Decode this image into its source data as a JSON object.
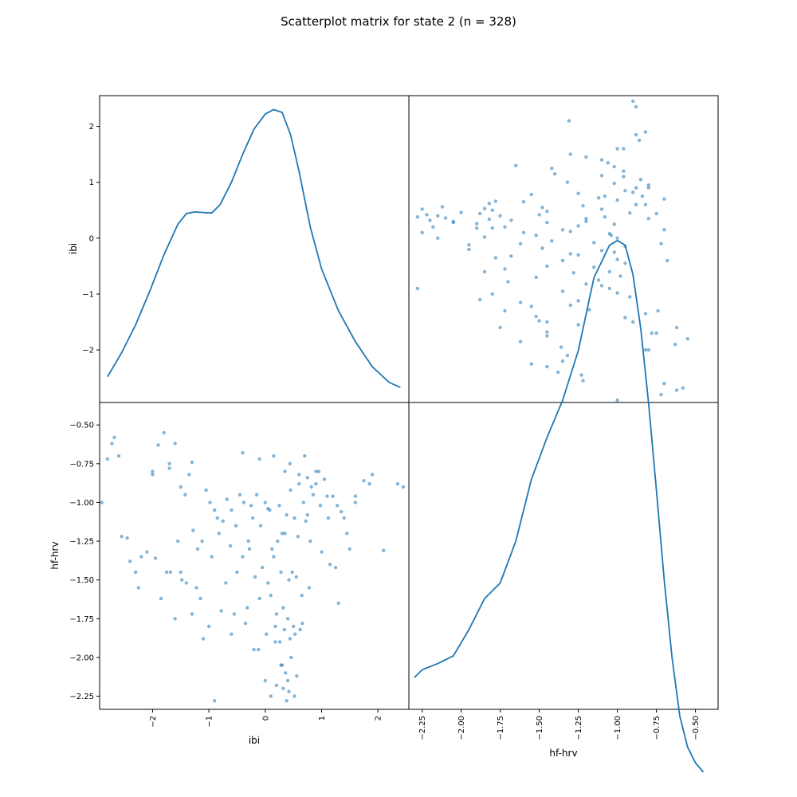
{
  "chart_data": {
    "type": "scatter_matrix",
    "title": "Scatterplot matrix for state 2 (n = 328)",
    "variables": [
      "ibi",
      "hf-hrv"
    ],
    "ranges": {
      "ibi": [
        -2.94,
        2.55
      ],
      "hf-hrv": [
        -2.335,
        -0.355
      ]
    },
    "ticks": {
      "ibi": {
        "values": [
          -2,
          -1,
          0,
          1,
          2
        ],
        "labels": [
          "−2",
          "−1",
          "0",
          "1",
          "2"
        ]
      },
      "hf-hrv": {
        "values": [
          -2.25,
          -2.0,
          -1.75,
          -1.5,
          -1.25,
          -1.0,
          -0.75,
          -0.5
        ],
        "labels": [
          "−2.25",
          "−2.00",
          "−1.75",
          "−1.50",
          "−1.25",
          "−1.00",
          "−0.75",
          "−0.50"
        ]
      }
    },
    "diagonal": "kde",
    "kde": {
      "ibi": {
        "x": [
          -2.8,
          -2.55,
          -2.3,
          -2.05,
          -1.8,
          -1.55,
          -1.4,
          -1.25,
          -1.1,
          -0.95,
          -0.8,
          -0.6,
          -0.4,
          -0.2,
          0.0,
          0.15,
          0.3,
          0.45,
          0.6,
          0.8,
          1.0,
          1.3,
          1.6,
          1.9,
          2.2,
          2.4
        ],
        "y": [
          -2.48,
          -2.05,
          -1.55,
          -0.95,
          -0.3,
          0.25,
          0.44,
          0.47,
          0.46,
          0.45,
          0.6,
          1.0,
          1.5,
          1.95,
          2.22,
          2.3,
          2.25,
          1.85,
          1.2,
          0.2,
          -0.55,
          -1.3,
          -1.85,
          -2.3,
          -2.58,
          -2.67
        ]
      },
      "hf-hrv": {
        "x": [
          -2.3,
          -2.25,
          -2.15,
          -2.05,
          -1.95,
          -1.85,
          -1.75,
          -1.65,
          -1.55,
          -1.45,
          -1.35,
          -1.25,
          -1.15,
          -1.05,
          -1.0,
          -0.95,
          -0.9,
          -0.85,
          -0.8,
          -0.75,
          -0.7,
          -0.65,
          -0.6,
          -0.55,
          -0.5,
          -0.45
        ],
        "y": [
          -2.13,
          -2.08,
          -2.04,
          -1.99,
          -1.82,
          -1.62,
          -1.52,
          -1.25,
          -0.85,
          -0.58,
          -0.34,
          -0.02,
          0.45,
          0.66,
          0.69,
          0.66,
          0.47,
          0.12,
          -0.36,
          -0.92,
          -1.5,
          -2.0,
          -2.38,
          -2.58,
          -2.68,
          -2.74
        ]
      }
    },
    "points": {
      "ibi": [
        -2.9,
        -2.8,
        -2.72,
        -2.68,
        -2.6,
        -2.55,
        -2.4,
        -2.3,
        -2.2,
        -2.1,
        -2.0,
        -1.9,
        -1.8,
        -1.7,
        -1.6,
        -1.5,
        -1.42,
        -1.35,
        -1.28,
        -1.2,
        -1.12,
        -1.05,
        -0.98,
        -0.9,
        -0.82,
        -0.75,
        -0.68,
        -0.6,
        -0.52,
        -0.45,
        -0.38,
        -0.3,
        -0.22,
        -0.15,
        -0.08,
        0.0,
        0.08,
        0.15,
        0.22,
        0.3,
        0.38,
        0.45,
        0.52,
        0.6,
        0.68,
        0.75,
        0.82,
        0.9,
        0.98,
        1.05,
        1.12,
        1.2,
        1.28,
        1.35,
        1.45,
        1.6,
        1.75,
        1.9,
        2.1,
        2.35,
        2.45,
        -2.45,
        -2.25,
        -1.95,
        -1.75,
        -1.55,
        -1.4,
        -1.15,
        -0.85,
        -0.62,
        -0.4,
        -0.18,
        0.05,
        0.25,
        0.35,
        0.48,
        0.58,
        0.72,
        1.0,
        1.3,
        -2.0,
        -1.68,
        -1.48,
        -1.22,
        -0.95,
        -0.7,
        -0.5,
        -0.28,
        -0.05,
        0.12,
        0.28,
        0.42,
        0.55,
        0.65,
        0.8,
        1.15,
        1.5,
        -1.85,
        -1.6,
        -1.3,
        -1.0,
        -0.78,
        -0.55,
        -0.32,
        -0.1,
        0.1,
        0.2,
        0.32,
        0.4,
        0.5,
        0.62,
        0.78,
        1.25,
        -1.5,
        -1.1,
        -0.6,
        -0.35,
        -0.12,
        0.02,
        0.18,
        0.26,
        0.34,
        0.44,
        0.53,
        0.66,
        0.18,
        0.28,
        0.36,
        0.46,
        0.56,
        -0.2,
        0.0,
        0.1,
        0.3,
        0.42,
        0.2,
        0.38,
        0.52,
        0.32,
        0.4,
        -0.9,
        -0.4,
        -0.1,
        0.15,
        0.44,
        0.7,
        0.95,
        -1.7,
        -1.3,
        0.9,
        1.1,
        1.4,
        1.85,
        0.6,
        0.85,
        1.6,
        -0.25,
        0.05,
        0.35,
        0.75
      ],
      "hf-hrv": [
        -1.0,
        -0.72,
        -0.62,
        -0.58,
        -0.7,
        -1.22,
        -1.38,
        -1.45,
        -1.35,
        -1.32,
        -0.8,
        -0.63,
        -0.55,
        -0.75,
        -0.62,
        -0.9,
        -0.95,
        -0.82,
        -1.18,
        -1.3,
        -1.25,
        -0.92,
        -1.0,
        -1.05,
        -1.2,
        -1.12,
        -0.98,
        -1.05,
        -1.15,
        -0.95,
        -1.0,
        -1.25,
        -1.1,
        -0.95,
        -1.15,
        -1.0,
        -1.05,
        -1.35,
        -1.25,
        -1.2,
        -1.08,
        -0.92,
        -1.1,
        -0.88,
        -1.0,
        -1.08,
        -0.9,
        -0.88,
        -1.02,
        -0.85,
        -1.1,
        -0.96,
        -1.02,
        -1.06,
        -1.2,
        -0.96,
        -0.86,
        -0.82,
        -1.31,
        -0.88,
        -0.9,
        -1.23,
        -1.55,
        -1.36,
        -1.45,
        -1.25,
        -1.52,
        -1.62,
        -1.1,
        -1.28,
        -1.35,
        -1.48,
        -1.52,
        -1.02,
        -1.2,
        -1.45,
        -1.22,
        -1.12,
        -1.32,
        -1.65,
        -0.82,
        -1.45,
        -1.5,
        -1.55,
        -1.35,
        -1.52,
        -1.45,
        -1.3,
        -1.42,
        -1.3,
        -1.45,
        -1.5,
        -1.48,
        -1.6,
        -1.25,
        -1.4,
        -1.3,
        -1.62,
        -1.75,
        -1.72,
        -1.8,
        -1.7,
        -1.72,
        -1.68,
        -1.62,
        -1.6,
        -1.72,
        -1.68,
        -1.75,
        -1.8,
        -1.82,
        -1.55,
        -1.42,
        -1.45,
        -1.88,
        -1.85,
        -1.78,
        -1.95,
        -1.85,
        -1.8,
        -1.9,
        -1.82,
        -1.88,
        -1.85,
        -1.78,
        -1.9,
        -2.05,
        -2.1,
        -2.0,
        -2.12,
        -1.95,
        -2.15,
        -2.25,
        -2.05,
        -2.22,
        -2.18,
        -2.28,
        -2.25,
        -2.2,
        -2.15,
        -2.28,
        -0.68,
        -0.72,
        -0.7,
        -0.75,
        -0.7,
        -0.8,
        -0.78,
        -0.74,
        -0.8,
        -0.96,
        -1.1,
        -0.88,
        -0.82,
        -0.95,
        -1.0,
        -1.02,
        -1.04,
        -0.8,
        -0.84,
        -0.9,
        -0.82
      ]
    }
  }
}
